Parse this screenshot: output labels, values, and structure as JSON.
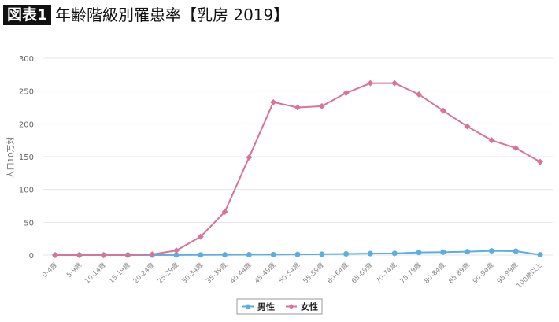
{
  "header": {
    "badge": "図表1",
    "title": "年齢階級別罹患率【乳房 2019】"
  },
  "chart_data": {
    "type": "line",
    "title": "年齢階級別罹患率【乳房 2019】",
    "xlabel": "",
    "ylabel": "人口10万対",
    "ylim": [
      0,
      300
    ],
    "yticks": [
      0,
      50,
      100,
      150,
      200,
      250,
      300
    ],
    "grid": true,
    "legend_position": "bottom",
    "categories": [
      "0-4歳",
      "5-9歳",
      "10-14歳",
      "15-19歳",
      "20-24歳",
      "25-29歳",
      "30-34歳",
      "35-39歳",
      "40-44歳",
      "45-49歳",
      "50-54歳",
      "55-59歳",
      "60-64歳",
      "65-69歳",
      "70-74歳",
      "75-79歳",
      "80-84歳",
      "85-89歳",
      "90-94歳",
      "95-99歳",
      "100歳以上"
    ],
    "series": [
      {
        "name": "男性",
        "color": "#5aaee0",
        "marker": "circle",
        "values": [
          0,
          0,
          0,
          0,
          0,
          0.2,
          0.3,
          0.4,
          0.6,
          0.8,
          1.0,
          1.3,
          1.8,
          2.2,
          2.6,
          4.0,
          4.5,
          5.3,
          6.5,
          6.0,
          0.5
        ]
      },
      {
        "name": "女性",
        "color": "#d9739a",
        "marker": "diamond",
        "values": [
          0,
          0,
          0,
          0,
          1,
          7,
          28,
          66,
          149,
          233,
          225,
          227,
          247,
          262,
          262,
          245,
          220,
          196,
          175,
          163,
          142
        ]
      }
    ]
  }
}
